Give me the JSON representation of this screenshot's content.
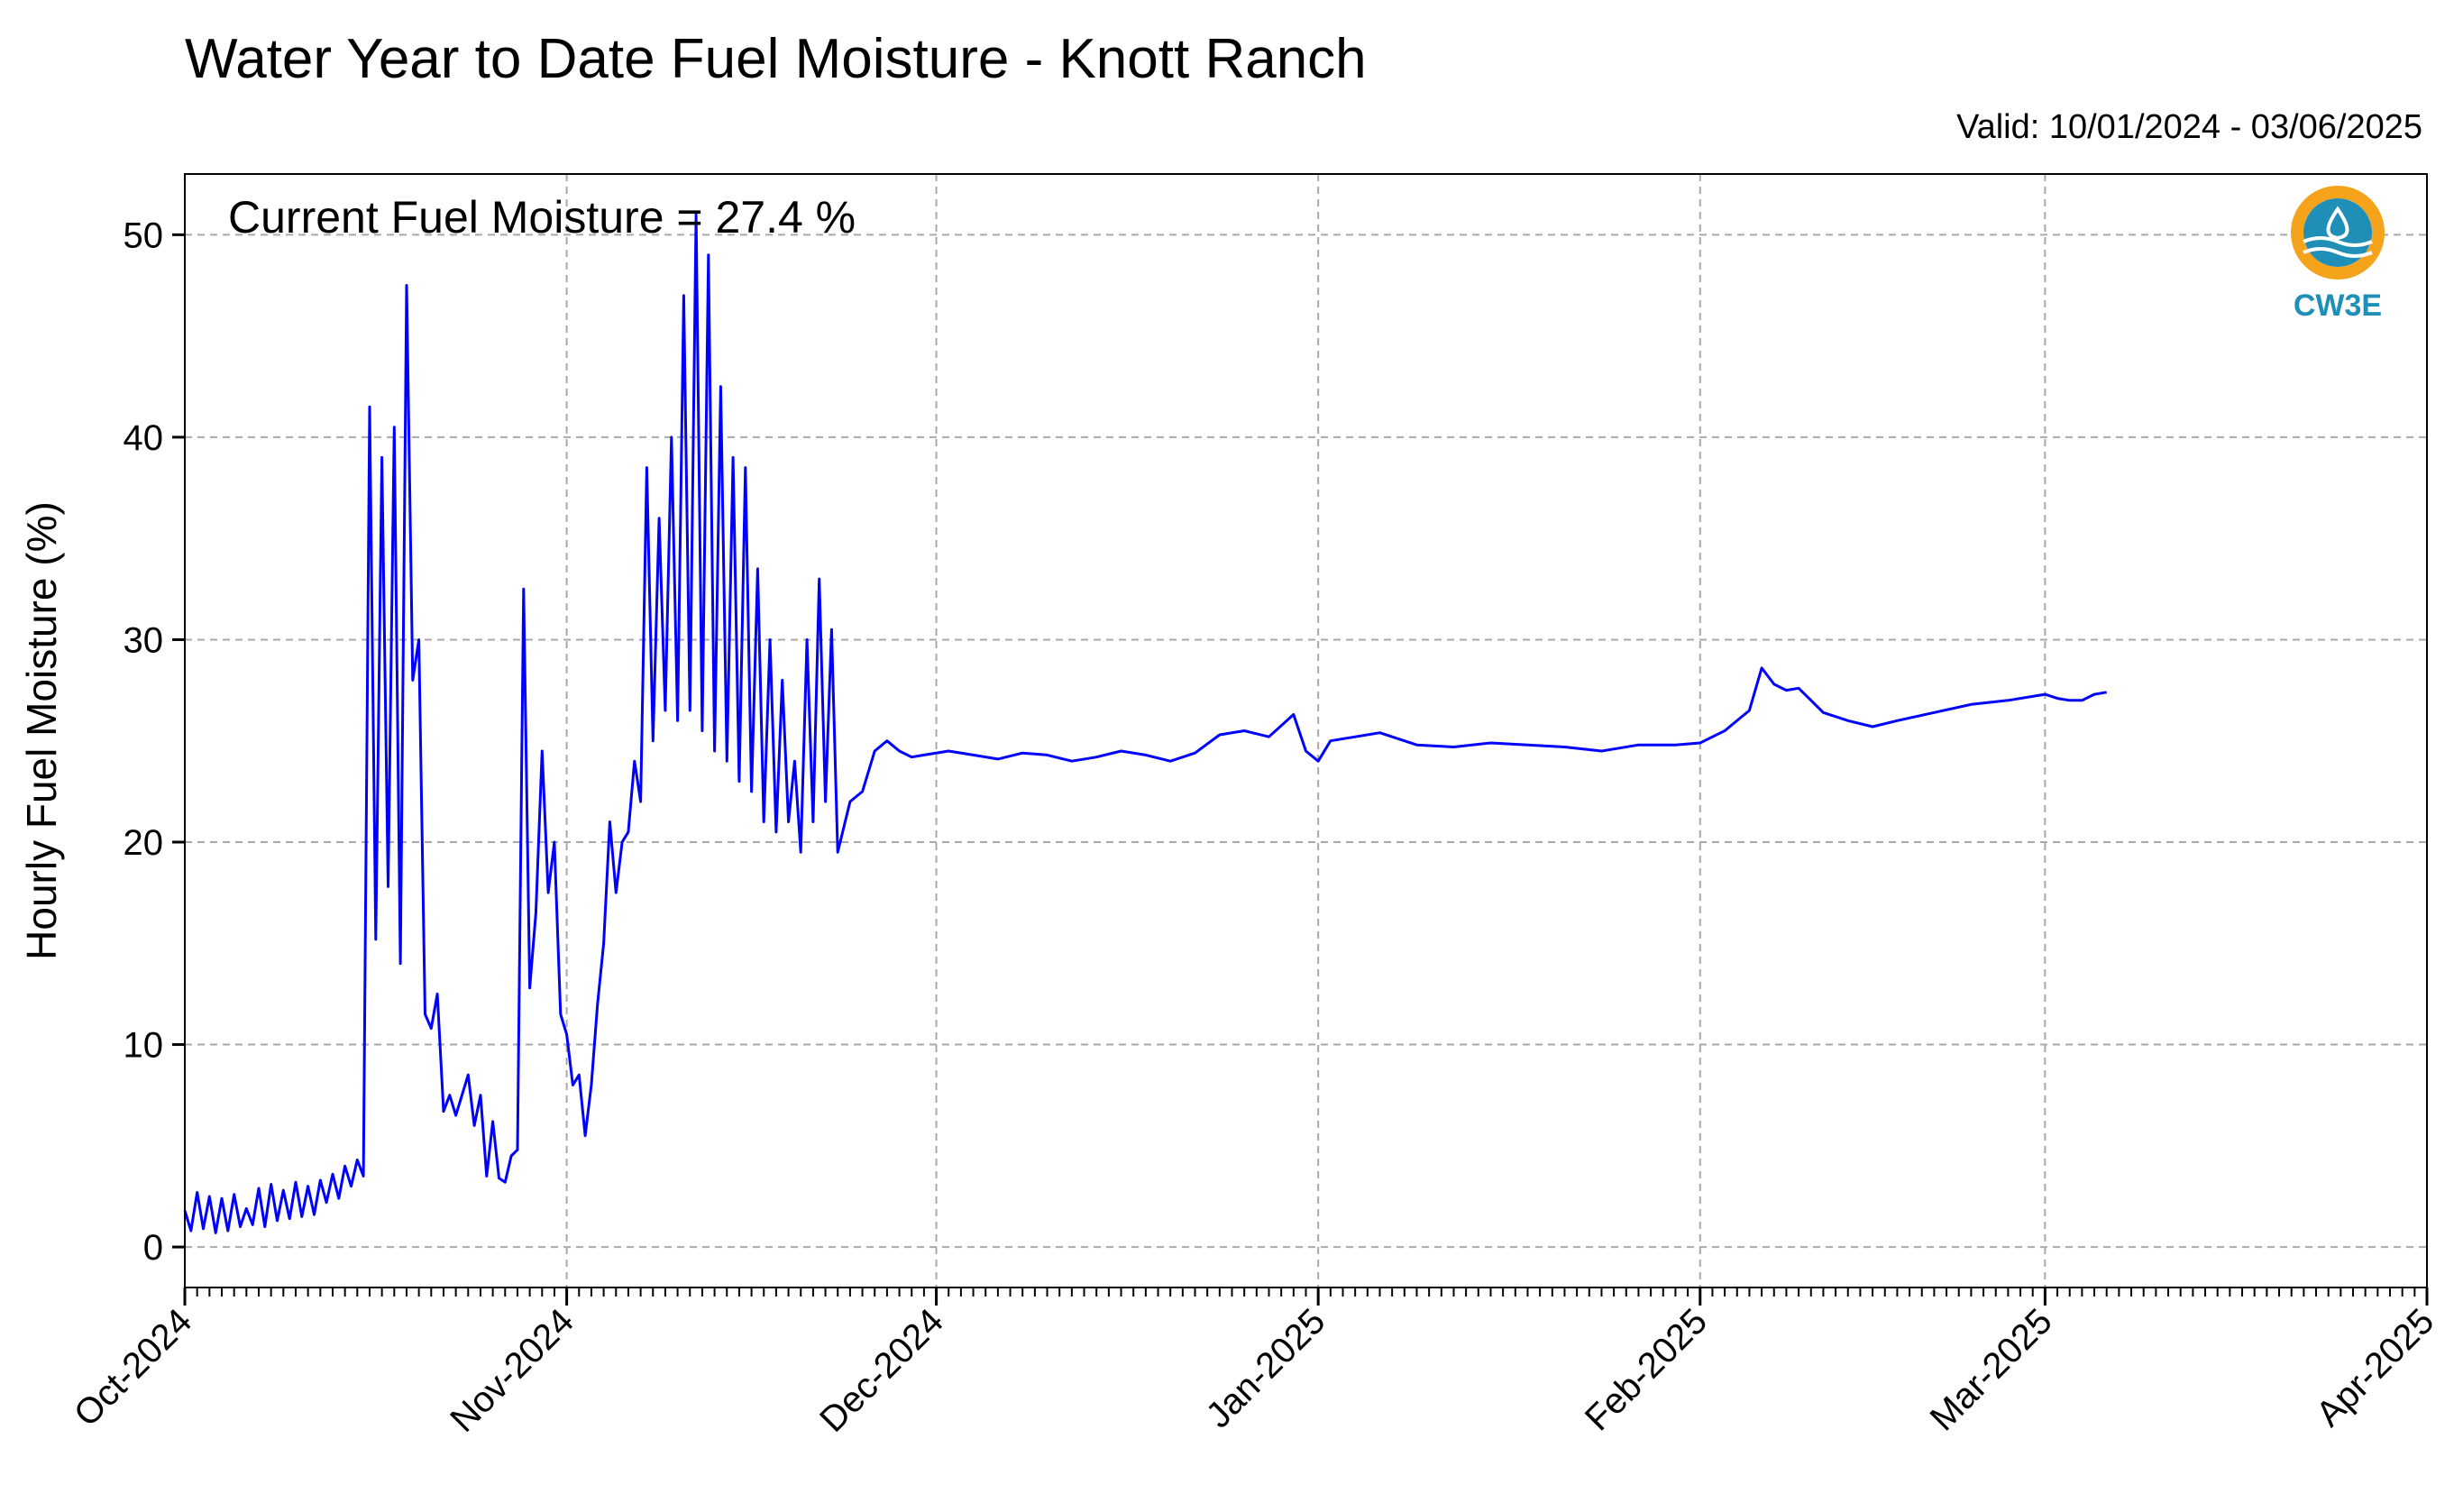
{
  "header": {
    "title": "Water Year to Date Fuel Moisture - Knott Ranch",
    "valid": "Valid: 10/01/2024 - 03/06/2025"
  },
  "annotation": "Current Fuel Moisture = 27.4 %",
  "logo": {
    "label": "CW3E",
    "icon": "cw3e-water-drop-logo",
    "ring_color": "#f5a31a",
    "wave_color": "#1f8fb8"
  },
  "colors": {
    "line": "#0000ff",
    "grid": "#a9a9a9",
    "axis": "#000000"
  },
  "chart_data": {
    "type": "line",
    "title": "Water Year to Date Fuel Moisture - Knott Ranch",
    "ylabel": "Hourly Fuel Moisture (%)",
    "xlabel": "",
    "x_range": [
      "2024-10-01",
      "2025-04-01"
    ],
    "ylim": [
      -2,
      53
    ],
    "yticks": [
      0,
      10,
      20,
      30,
      40,
      50
    ],
    "xtick_labels": [
      "Oct-2024",
      "Nov-2024",
      "Dec-2024",
      "Jan-2025",
      "Feb-2025",
      "Mar-2025",
      "Apr-2025"
    ],
    "grid": true,
    "legend": "none",
    "series": [
      {
        "x": [
          "2024-10-01",
          "2024-10-01",
          "2024-10-02",
          "2024-10-02",
          "2024-10-03",
          "2024-10-03",
          "2024-10-04",
          "2024-10-04",
          "2024-10-05",
          "2024-10-05",
          "2024-10-06",
          "2024-10-06",
          "2024-10-07",
          "2024-10-07",
          "2024-10-08",
          "2024-10-08",
          "2024-10-09",
          "2024-10-09",
          "2024-10-10",
          "2024-10-10",
          "2024-10-11",
          "2024-10-11",
          "2024-10-12",
          "2024-10-12",
          "2024-10-13",
          "2024-10-13",
          "2024-10-14",
          "2024-10-14",
          "2024-10-15",
          "2024-10-15",
          "2024-10-16",
          "2024-10-16",
          "2024-10-17",
          "2024-10-17",
          "2024-10-18",
          "2024-10-18",
          "2024-10-19",
          "2024-10-19",
          "2024-10-20",
          "2024-10-20",
          "2024-10-21",
          "2024-10-21",
          "2024-10-22",
          "2024-10-22",
          "2024-10-23",
          "2024-10-24",
          "2024-10-24",
          "2024-10-25",
          "2024-10-25",
          "2024-10-26",
          "2024-10-26",
          "2024-10-27",
          "2024-10-27",
          "2024-10-28",
          "2024-10-28",
          "2024-10-29",
          "2024-10-29",
          "2024-10-30",
          "2024-10-30",
          "2024-10-31",
          "2024-10-31",
          "2024-11-01",
          "2024-11-01",
          "2024-11-02",
          "2024-11-02",
          "2024-11-03",
          "2024-11-03",
          "2024-11-04",
          "2024-11-04",
          "2024-11-05",
          "2024-11-05",
          "2024-11-06",
          "2024-11-06",
          "2024-11-07",
          "2024-11-07",
          "2024-11-08",
          "2024-11-08",
          "2024-11-09",
          "2024-11-09",
          "2024-11-10",
          "2024-11-10",
          "2024-11-11",
          "2024-11-11",
          "2024-11-12",
          "2024-11-12",
          "2024-11-13",
          "2024-11-13",
          "2024-11-14",
          "2024-11-14",
          "2024-11-15",
          "2024-11-15",
          "2024-11-16",
          "2024-11-16",
          "2024-11-17",
          "2024-11-17",
          "2024-11-18",
          "2024-11-18",
          "2024-11-19",
          "2024-11-19",
          "2024-11-20",
          "2024-11-20",
          "2024-11-21",
          "2024-11-21",
          "2024-11-22",
          "2024-11-22",
          "2024-11-23",
          "2024-11-24",
          "2024-11-25",
          "2024-11-26",
          "2024-11-27",
          "2024-11-28",
          "2024-11-29",
          "2024-11-30",
          "2024-12-02",
          "2024-12-04",
          "2024-12-06",
          "2024-12-08",
          "2024-12-10",
          "2024-12-12",
          "2024-12-14",
          "2024-12-16",
          "2024-12-18",
          "2024-12-20",
          "2024-12-22",
          "2024-12-24",
          "2024-12-26",
          "2024-12-28",
          "2024-12-30",
          "2024-12-31",
          "2025-01-01",
          "2025-01-02",
          "2025-01-04",
          "2025-01-06",
          "2025-01-09",
          "2025-01-12",
          "2025-01-15",
          "2025-01-18",
          "2025-01-21",
          "2025-01-24",
          "2025-01-27",
          "2025-01-30",
          "2025-02-01",
          "2025-02-03",
          "2025-02-05",
          "2025-02-06",
          "2025-02-07",
          "2025-02-08",
          "2025-02-09",
          "2025-02-10",
          "2025-02-11",
          "2025-02-13",
          "2025-02-15",
          "2025-02-17",
          "2025-02-20",
          "2025-02-23",
          "2025-02-26",
          "2025-03-01",
          "2025-03-02",
          "2025-03-03",
          "2025-03-04",
          "2025-03-05",
          "2025-03-06"
        ],
        "y": [
          1.8,
          0.8,
          2.7,
          0.9,
          2.5,
          0.7,
          2.4,
          0.8,
          2.6,
          1.0,
          1.9,
          1.1,
          2.9,
          1.0,
          3.1,
          1.3,
          2.8,
          1.4,
          3.2,
          1.5,
          3.0,
          1.6,
          3.3,
          2.2,
          3.6,
          2.4,
          4.0,
          3.0,
          4.3,
          3.5,
          41.5,
          15.2,
          39.0,
          17.8,
          40.5,
          14.0,
          47.5,
          28.0,
          30.0,
          11.5,
          10.8,
          12.5,
          6.7,
          7.5,
          6.5,
          8.5,
          6.0,
          7.5,
          3.5,
          6.2,
          3.4,
          3.2,
          4.5,
          4.8,
          32.5,
          12.8,
          16.5,
          24.5,
          17.5,
          20.0,
          11.5,
          10.5,
          8.0,
          8.5,
          5.5,
          8.0,
          12.0,
          15.0,
          21.0,
          17.5,
          20.0,
          20.5,
          24.0,
          22.0,
          38.5,
          25.0,
          36.0,
          26.5,
          40.0,
          26.0,
          47.0,
          26.5,
          51.0,
          25.5,
          49.0,
          24.5,
          42.5,
          24.0,
          39.0,
          23.0,
          38.5,
          22.5,
          33.5,
          21.0,
          30.0,
          20.5,
          28.0,
          21.0,
          24.0,
          19.5,
          30.0,
          21.0,
          33.0,
          22.0,
          30.5,
          19.5,
          22.0,
          22.5,
          24.5,
          25.0,
          24.5,
          24.2,
          24.3,
          24.5,
          24.3,
          24.1,
          24.4,
          24.3,
          24.0,
          24.2,
          24.5,
          24.3,
          24.0,
          24.4,
          25.3,
          25.5,
          25.2,
          26.3,
          24.5,
          24.0,
          25.0,
          25.2,
          25.4,
          24.8,
          24.7,
          24.9,
          24.8,
          24.7,
          24.5,
          24.8,
          24.8,
          24.9,
          25.5,
          26.5,
          28.6,
          27.8,
          27.5,
          27.6,
          27.0,
          26.4,
          26.0,
          25.7,
          26.0,
          26.4,
          26.8,
          27.0,
          27.3,
          27.1,
          27.0,
          27.0,
          27.3,
          27.4
        ]
      }
    ]
  }
}
